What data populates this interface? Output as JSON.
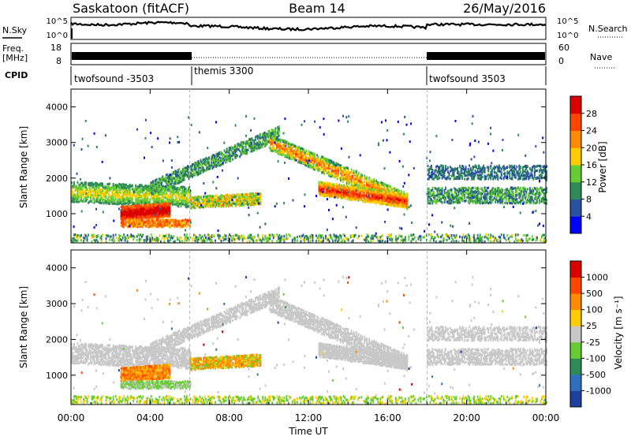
{
  "header": {
    "station": "Saskatoon (fitACF)",
    "beam": "Beam 14",
    "date": "26/May/2016"
  },
  "strip_nsky": {
    "left_label": "N.Sky",
    "right_label": "N.Search",
    "y_ticks_left": [
      "10^5",
      "10^0"
    ],
    "y_ticks_right": [
      "10^5",
      "10^0"
    ]
  },
  "strip_freq": {
    "left_label_1": "Freq.",
    "left_label_2": "[MHz]",
    "right_label": "Nave",
    "y_ticks_left": [
      "18",
      "8"
    ],
    "y_ticks_right": [
      "60",
      "0"
    ]
  },
  "cpid": {
    "label": "CPID",
    "segments": [
      {
        "name": "twofsound -3503",
        "start": 0,
        "end": 6
      },
      {
        "name": "themis 3300",
        "start": 6,
        "end": 18
      },
      {
        "name": "twofsound 3503",
        "start": 18,
        "end": 24
      }
    ]
  },
  "chart_data": [
    {
      "type": "heatmap",
      "name": "power",
      "ylabel": "Slant Range [km]",
      "ylim": [
        180,
        4500
      ],
      "yticks": [
        1000,
        2000,
        3000,
        4000
      ],
      "xlim": [
        0,
        24
      ],
      "colorbar": {
        "label": "Power [dB]",
        "ticks": [
          "28",
          "24",
          "20",
          "16",
          "12",
          "8",
          "4"
        ],
        "colors": [
          "#0000ff",
          "#2a50a0",
          "#2e8b57",
          "#66cc33",
          "#ffcc00",
          "#ff8c00",
          "#ff4500",
          "#dd0000"
        ]
      }
    },
    {
      "type": "heatmap",
      "name": "velocity",
      "ylabel": "Slant Range [km]",
      "ylim": [
        180,
        4500
      ],
      "yticks": [
        1000,
        2000,
        3000,
        4000
      ],
      "xlim": [
        0,
        24
      ],
      "xlabel": "Time UT",
      "xtick_labels": [
        "00:00",
        "04:00",
        "08:00",
        "12:00",
        "16:00",
        "20:00",
        "00:00"
      ],
      "colorbar": {
        "label": "Velocity [m s⁻¹]",
        "ticks": [
          "1000",
          "500",
          "100",
          "25",
          "-25",
          "-100",
          "-500",
          "-1000"
        ],
        "colors": [
          "#1f3fa0",
          "#2e6fbf",
          "#2e8b57",
          "#66cc33",
          "#c8c8c8",
          "#ffcc00",
          "#ff8c00",
          "#ff4500",
          "#dd0000"
        ]
      }
    }
  ]
}
